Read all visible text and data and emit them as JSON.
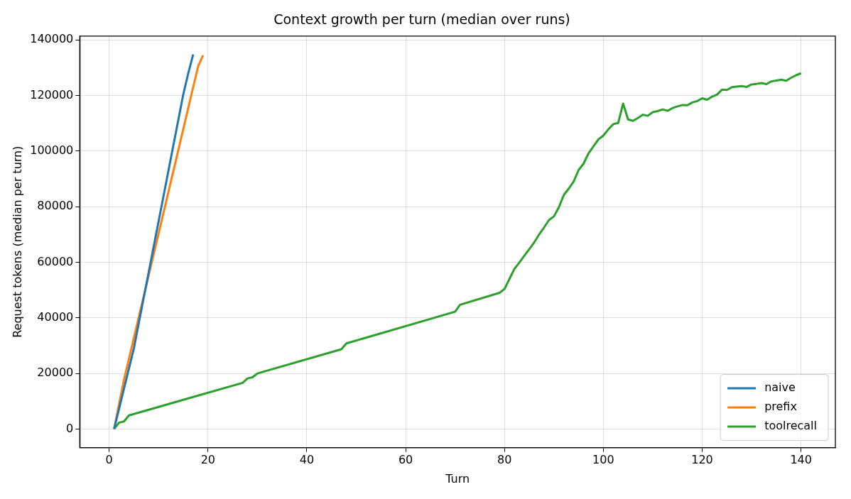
{
  "chart_data": {
    "type": "line",
    "title": "Context growth per turn (median over runs)",
    "xlabel": "Turn",
    "ylabel": "Request tokens (median per turn)",
    "xlim": [
      -5.95,
      146.95
    ],
    "ylim": [
      -6700,
      141400
    ],
    "xticks": [
      0,
      20,
      40,
      60,
      80,
      100,
      120,
      140
    ],
    "yticks": [
      0,
      20000,
      40000,
      60000,
      80000,
      100000,
      120000,
      140000
    ],
    "grid": true,
    "legend": "bottom right",
    "line_style": "solid",
    "marker": "none",
    "series": [
      {
        "name": "naive",
        "color": "#1f77b4",
        "x": [
          1,
          5,
          15,
          16,
          17
        ],
        "values": [
          0,
          29000,
          120400,
          128000,
          134800
        ]
      },
      {
        "name": "prefix",
        "color": "#ff7f0e",
        "x": [
          1,
          3,
          18,
          19
        ],
        "values": [
          0,
          17700,
          130500,
          134500
        ]
      },
      {
        "name": "toolrecall",
        "color": "#2ca02c",
        "x": [
          1,
          2,
          3,
          4,
          27,
          28,
          29,
          30,
          47,
          48,
          70,
          71,
          79,
          80,
          81,
          82,
          83,
          84,
          85,
          86,
          87,
          88,
          89,
          90,
          91,
          92,
          93,
          94,
          95,
          96,
          97,
          98,
          99,
          100,
          101,
          102,
          103,
          104,
          105,
          106,
          107,
          108,
          109,
          110,
          111,
          112,
          113,
          114,
          115,
          116,
          117,
          118,
          119,
          120,
          121,
          122,
          123,
          124,
          125,
          126,
          127,
          128,
          129,
          130,
          131,
          132,
          133,
          134,
          135,
          136,
          137,
          138,
          139,
          140
        ],
        "values": [
          0,
          2300,
          2700,
          4900,
          16600,
          18200,
          18600,
          20000,
          28700,
          30800,
          42200,
          44700,
          49000,
          50400,
          54000,
          57600,
          59900,
          62300,
          64700,
          67100,
          70000,
          72500,
          75200,
          76500,
          79800,
          84200,
          86500,
          89100,
          93200,
          95500,
          99200,
          101700,
          104200,
          105600,
          107800,
          109700,
          110100,
          117100,
          111400,
          110900,
          111900,
          113100,
          112700,
          114000,
          114400,
          115000,
          114500,
          115500,
          116100,
          116600,
          116500,
          117500,
          118000,
          119000,
          118500,
          119600,
          120300,
          122100,
          122000,
          123000,
          123200,
          123400,
          123100,
          124000,
          124200,
          124500,
          124100,
          125100,
          125400,
          125700,
          125300,
          126400,
          127300,
          128000
        ]
      }
    ]
  }
}
